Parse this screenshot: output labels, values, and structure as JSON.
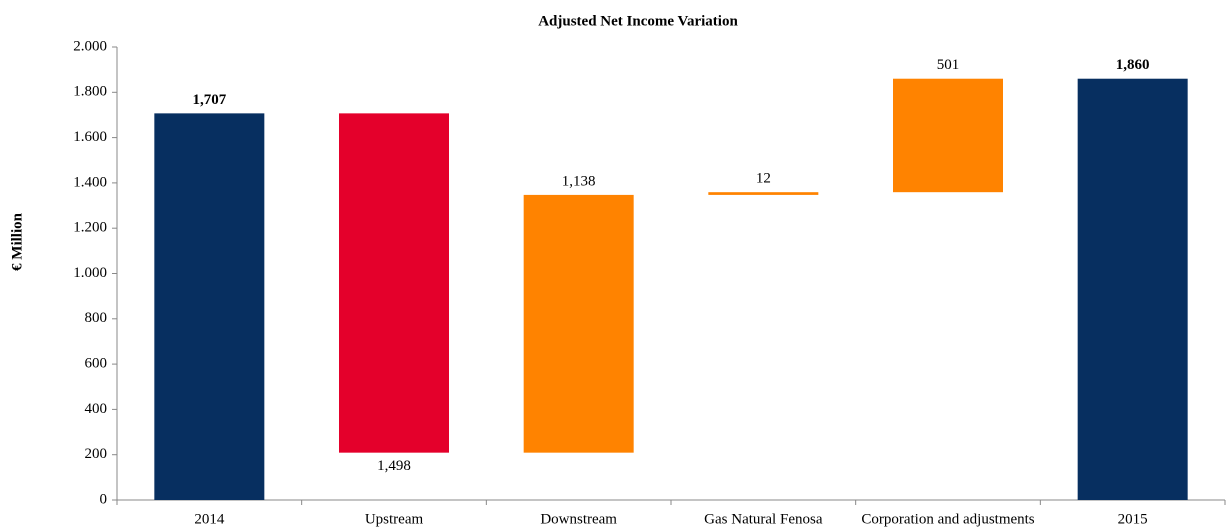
{
  "chart_data": {
    "type": "waterfall",
    "title": "Adjusted Net Income Variation",
    "y_label": "€ Million",
    "categories": [
      "2014",
      "Upstream",
      "Downstream",
      "Gas Natural Fenosa",
      "Corporation and adjustments",
      "2015"
    ],
    "values": [
      1707,
      -1498,
      1138,
      12,
      501,
      1860
    ],
    "value_labels": [
      "1,707",
      "1,498",
      "1,138",
      "12",
      "501",
      "1,860"
    ],
    "colors": [
      "#072f60",
      "#e4002b",
      "#ff8300",
      "#ff8300",
      "#ff8300",
      "#072f60"
    ],
    "ylim": [
      0,
      2000
    ],
    "yticks": [
      0,
      200,
      400,
      600,
      800,
      {
        "value": 1000,
        "label": "1.000"
      },
      {
        "value": 1200,
        "label": "1.200"
      },
      {
        "value": 1400,
        "label": "1.400"
      },
      {
        "value": 1600,
        "label": "1.600"
      },
      {
        "value": 1800,
        "label": "1.800"
      },
      {
        "value": 2000,
        "label": "2.000"
      }
    ]
  }
}
